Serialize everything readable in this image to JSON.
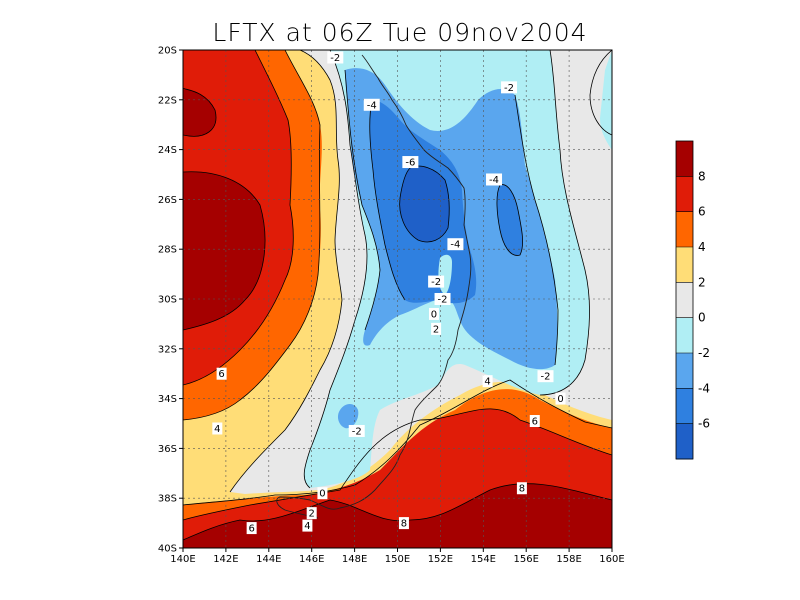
{
  "title": "LFTX at 06Z Tue 09nov2004",
  "map": {
    "x_ticks": [
      "140E",
      "142E",
      "144E",
      "146E",
      "148E",
      "150E",
      "152E",
      "154E",
      "156E",
      "158E",
      "160E"
    ],
    "y_ticks": [
      "20S",
      "22S",
      "24S",
      "26S",
      "28S",
      "30S",
      "32S",
      "34S",
      "36S",
      "38S",
      "40S"
    ],
    "lon_range": [
      140,
      160
    ],
    "lat_range": [
      -40,
      -20
    ],
    "grid": true
  },
  "colorbar": {
    "ticks": [
      "8",
      "6",
      "4",
      "2",
      "0",
      "-2",
      "-4",
      "-6"
    ],
    "colors": {
      "gt8": "#a50000",
      "6to8": "#e01c08",
      "4to6": "#ff6600",
      "2to4": "#ffdd77",
      "0to2": "#e8e8e8",
      "m2to0": "#b0eef4",
      "m4tom2": "#5aa6ee",
      "m6tom4": "#2f80e0",
      "ltm6": "#1f60c8"
    }
  },
  "contour_labels": [
    {
      "text": "-2",
      "lon": 147.1,
      "lat": -20.3
    },
    {
      "text": "-2",
      "lon": 155.2,
      "lat": -21.5
    },
    {
      "text": "-4",
      "lon": 148.8,
      "lat": -22.2
    },
    {
      "text": "-6",
      "lon": 150.6,
      "lat": -24.5
    },
    {
      "text": "-4",
      "lon": 154.5,
      "lat": -25.2
    },
    {
      "text": "-4",
      "lon": 152.7,
      "lat": -27.8
    },
    {
      "text": "-2",
      "lon": 151.8,
      "lat": -29.3
    },
    {
      "text": "-2",
      "lon": 152.1,
      "lat": -30.0
    },
    {
      "text": "0",
      "lon": 151.7,
      "lat": -30.6
    },
    {
      "text": "2",
      "lon": 151.8,
      "lat": -31.2
    },
    {
      "text": "6",
      "lon": 141.8,
      "lat": -33.0
    },
    {
      "text": "-2",
      "lon": 156.9,
      "lat": -33.1
    },
    {
      "text": "4",
      "lon": 154.2,
      "lat": -33.3
    },
    {
      "text": "0",
      "lon": 157.6,
      "lat": -34.0
    },
    {
      "text": "6",
      "lon": 156.4,
      "lat": -34.9
    },
    {
      "text": "4",
      "lon": 141.6,
      "lat": -35.2
    },
    {
      "text": "-2",
      "lon": 148.1,
      "lat": -35.3
    },
    {
      "text": "8",
      "lon": 155.8,
      "lat": -37.6
    },
    {
      "text": "0",
      "lon": 146.5,
      "lat": -37.8
    },
    {
      "text": "2",
      "lon": 146.0,
      "lat": -38.6
    },
    {
      "text": "4",
      "lon": 145.8,
      "lat": -39.1
    },
    {
      "text": "8",
      "lon": 150.3,
      "lat": -39.0
    },
    {
      "text": "6",
      "lon": 143.2,
      "lat": -39.2
    }
  ]
}
